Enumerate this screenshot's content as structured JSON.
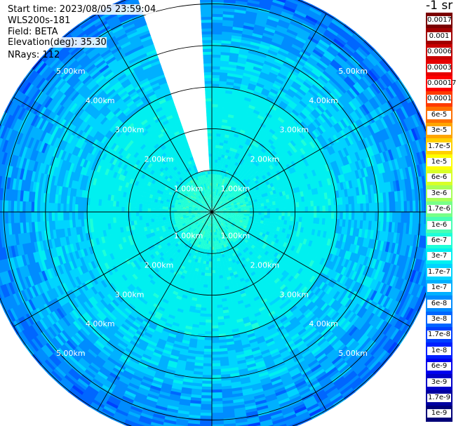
{
  "header": {
    "start_time": "Start time: 2023/08/05 23:59:04",
    "instrument": "WLS200s-181",
    "field": "Field: BETA",
    "elevation": "Elevation(deg): 35.30",
    "nrays": "NRays: 112"
  },
  "colorbar": {
    "units": "-1 sr",
    "levels": [
      {
        "label": "0.0017",
        "color": "#7a0000"
      },
      {
        "label": "0.001",
        "color": "#a00000"
      },
      {
        "label": "0.0006",
        "color": "#c80000"
      },
      {
        "label": "0.0003",
        "color": "#e60000"
      },
      {
        "label": "0.00017",
        "color": "#ff0000"
      },
      {
        "label": "0.0001",
        "color": "#ff3a00"
      },
      {
        "label": "6e-5",
        "color": "#ff7000"
      },
      {
        "label": "3e-5",
        "color": "#ffa500"
      },
      {
        "label": "1.7e-5",
        "color": "#ffd000"
      },
      {
        "label": "1e-5",
        "color": "#ffff00"
      },
      {
        "label": "6e-6",
        "color": "#d8ff28"
      },
      {
        "label": "3e-6",
        "color": "#a8ff58"
      },
      {
        "label": "1.7e-6",
        "color": "#78ff88"
      },
      {
        "label": "1e-6",
        "color": "#48ffb4"
      },
      {
        "label": "6e-7",
        "color": "#1effd8"
      },
      {
        "label": "3e-7",
        "color": "#00f0f0"
      },
      {
        "label": "1.7e-7",
        "color": "#00d4ff"
      },
      {
        "label": "1e-7",
        "color": "#00b0ff"
      },
      {
        "label": "6e-8",
        "color": "#008cff"
      },
      {
        "label": "3e-8",
        "color": "#0066ff"
      },
      {
        "label": "1.7e-8",
        "color": "#0040ff"
      },
      {
        "label": "1e-8",
        "color": "#0020ff"
      },
      {
        "label": "6e-9",
        "color": "#0000ee"
      },
      {
        "label": "3e-9",
        "color": "#0000c8"
      },
      {
        "label": "1.7e-9",
        "color": "#0000a0"
      },
      {
        "label": "1e-9",
        "color": "#000078"
      }
    ]
  },
  "chart_data": {
    "type": "heatmap",
    "projection": "polar PPI scan",
    "field": "BETA",
    "units": "-1 sr",
    "ring_labels": [
      "1.00km",
      "2.00km",
      "3.00km",
      "4.00km",
      "5.00km"
    ],
    "max_range_km": 5.0,
    "rings_km": [
      1,
      2,
      3,
      4,
      5
    ],
    "radials_deg": [
      0,
      30,
      60,
      90,
      120,
      150,
      180,
      210,
      240,
      270,
      300,
      330
    ],
    "grid": true,
    "gap_azimuth_deg": [
      -20,
      -2
    ],
    "range_bands": [
      {
        "from_km": 0.0,
        "to_km": 0.9,
        "value": "6e-7"
      },
      {
        "from_km": 0.9,
        "to_km": 3.0,
        "value": "3e-7"
      },
      {
        "from_km": 3.0,
        "to_km": 4.2,
        "value": "1.7e-7"
      },
      {
        "from_km": 4.2,
        "to_km": 5.0,
        "value": "1e-7"
      },
      {
        "from_km": 5.0,
        "to_km": 5.5,
        "value": "6e-8"
      }
    ]
  }
}
